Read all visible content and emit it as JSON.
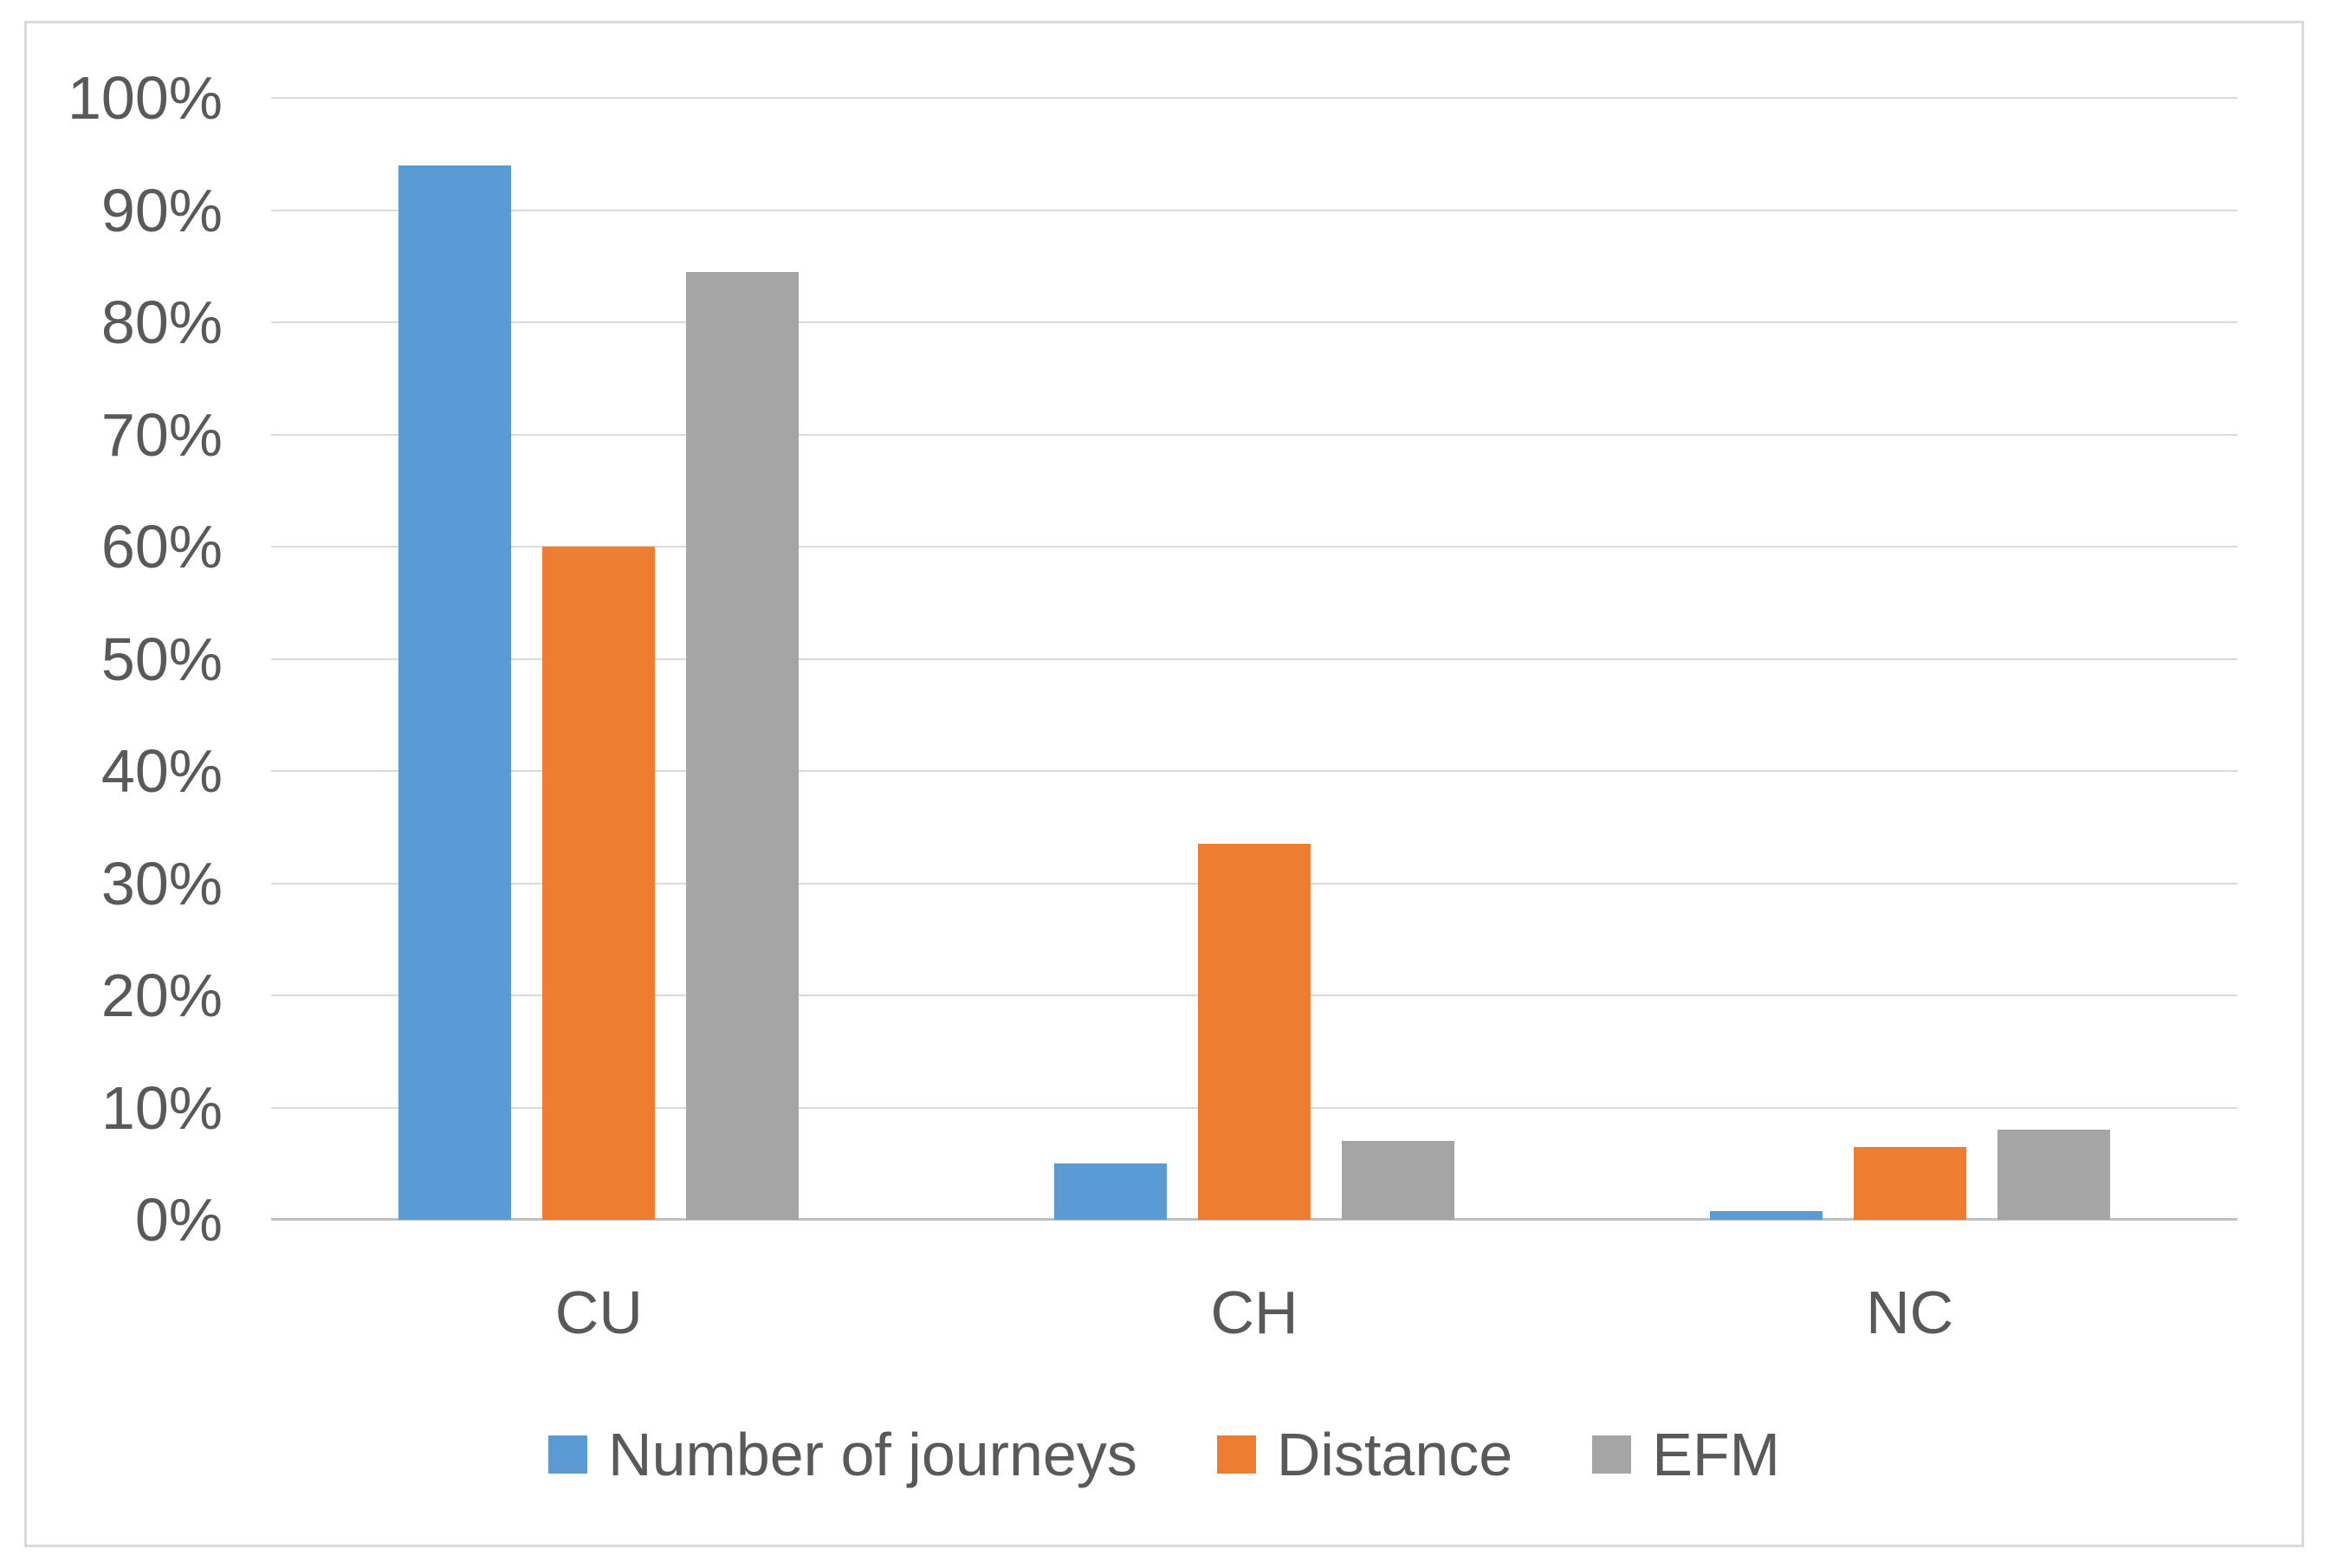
{
  "figure": {
    "background": "#FFFFFF",
    "frame_border_color": "#D9D9D9"
  },
  "axes": {
    "y_tick_labels": [
      "0%",
      "10%",
      "20%",
      "30%",
      "40%",
      "50%",
      "60%",
      "70%",
      "80%",
      "90%",
      "100%"
    ],
    "x_category_labels": [
      "CU",
      "CH",
      "NC"
    ],
    "tick_label_color": "#595959",
    "gridline_color": "#D9D9D9",
    "axis_line_color": "#BFBFBF"
  },
  "legend": {
    "position": "bottom-center",
    "items": [
      {
        "label": "Number of journeys",
        "color": "#5B9BD5"
      },
      {
        "label": "Distance",
        "color": "#ED7D31"
      },
      {
        "label": "EFM",
        "color": "#A5A5A5"
      }
    ]
  },
  "chart_data": {
    "type": "bar",
    "title": "",
    "xlabel": "",
    "ylabel": "",
    "categories": [
      "CU",
      "CH",
      "NC"
    ],
    "series": [
      {
        "name": "Number of journeys",
        "color": "#5B9BD5",
        "values": [
          94,
          5,
          0.8
        ]
      },
      {
        "name": "Distance",
        "color": "#ED7D31",
        "values": [
          60,
          33.5,
          6.5
        ]
      },
      {
        "name": "EFM",
        "color": "#A5A5A5",
        "values": [
          84.5,
          7,
          8
        ]
      }
    ],
    "ylim": [
      0,
      100
    ],
    "ytick_step": 10,
    "value_format": "percent",
    "grid": true,
    "legend_position": "bottom"
  }
}
